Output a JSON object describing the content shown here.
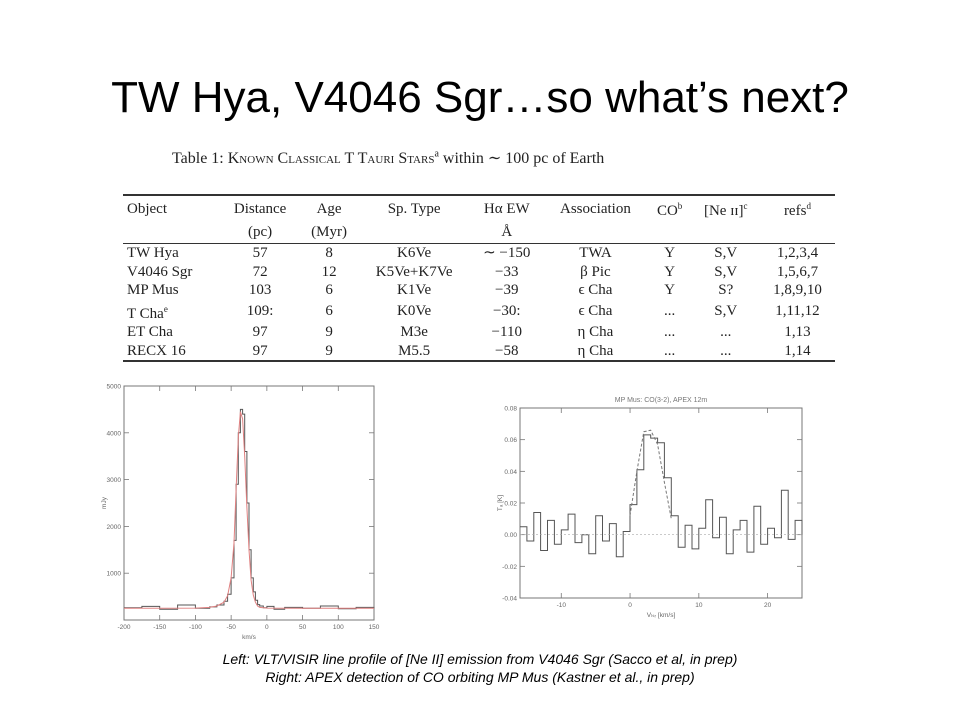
{
  "slide": {
    "title": "TW Hya, V4046 Sgr…so what’s next?"
  },
  "table": {
    "caption_prefix": "Table 1: ",
    "caption_smallcaps": "Known Classical T Tauri Stars",
    "caption_sup": "a",
    "caption_rest": " within ∼ 100 pc of Earth",
    "headers": {
      "object": "Object",
      "distance": "Distance",
      "distance_unit": "(pc)",
      "age": "Age",
      "age_unit": "(Myr)",
      "sptype": "Sp. Type",
      "ha": "Hα EW",
      "ha_unit": "Å",
      "association": "Association",
      "co": "CO",
      "co_sup": "b",
      "ne": "[Ne ɪɪ]",
      "ne_sup": "c",
      "refs": "refs",
      "refs_sup": "d"
    },
    "rows": [
      {
        "object": "TW Hya",
        "object_sup": "",
        "distance": "57",
        "age": "8",
        "sptype": "K6Ve",
        "ha": "∼ −150",
        "association": "TWA",
        "co": "Y",
        "ne": "S,V",
        "refs": "1,2,3,4"
      },
      {
        "object": "V4046 Sgr",
        "object_sup": "",
        "distance": "72",
        "age": "12",
        "sptype": "K5Ve+K7Ve",
        "ha": "−33",
        "association": "β Pic",
        "co": "Y",
        "ne": "S,V",
        "refs": "1,5,6,7"
      },
      {
        "object": "MP Mus",
        "object_sup": "",
        "distance": "103",
        "age": "6",
        "sptype": "K1Ve",
        "ha": "−39",
        "association": "ϵ Cha",
        "co": "Y",
        "ne": "S?",
        "refs": "1,8,9,10"
      },
      {
        "object": "T Cha",
        "object_sup": "e",
        "distance": "109:",
        "age": "6",
        "sptype": "K0Ve",
        "ha": "−30:",
        "association": "ϵ Cha",
        "co": "...",
        "ne": "S,V",
        "refs": "1,11,12"
      },
      {
        "object": "ET Cha",
        "object_sup": "",
        "distance": "97",
        "age": "9",
        "sptype": "M3e",
        "ha": "−110",
        "association": "η Cha",
        "co": "...",
        "ne": "...",
        "refs": "1,13"
      },
      {
        "object": "RECX 16",
        "object_sup": "",
        "distance": "97",
        "age": "9",
        "sptype": "M5.5",
        "ha": "−58",
        "association": "η Cha",
        "co": "...",
        "ne": "...",
        "refs": "1,14"
      }
    ]
  },
  "chart_data": [
    {
      "type": "line",
      "title": "",
      "xlabel": "km/s",
      "ylabel": "mJy",
      "xlim": [
        -200,
        150
      ],
      "ylim": [
        0,
        5000
      ],
      "xticks": [
        "-200",
        "-150",
        "-100",
        "-50",
        "0",
        "50",
        "100",
        "150"
      ],
      "yticks": [
        "1000",
        "2000",
        "3000",
        "4000",
        "5000"
      ],
      "series": [
        {
          "style": "histogram",
          "color": "#555555",
          "x": [
            -200,
            -175,
            -150,
            -125,
            -100,
            -80,
            -70,
            -60,
            -55,
            -50,
            -46,
            -43,
            -40,
            -37,
            -34,
            -31,
            -28,
            -25,
            -22,
            -19,
            -16,
            -13,
            -10,
            -5,
            0,
            10,
            25,
            50,
            75,
            100,
            125,
            150
          ],
          "y": [
            260,
            290,
            230,
            320,
            250,
            280,
            320,
            400,
            550,
            900,
            1700,
            2900,
            4000,
            4500,
            4400,
            3600,
            2500,
            1500,
            900,
            600,
            420,
            330,
            300,
            260,
            290,
            230,
            270,
            250,
            300,
            240,
            270,
            250
          ]
        },
        {
          "style": "line",
          "color": "#e08080",
          "x": [
            -200,
            -100,
            -80,
            -70,
            -60,
            -55,
            -50,
            -46,
            -43,
            -40,
            -37,
            -34,
            -31,
            -28,
            -25,
            -22,
            -19,
            -16,
            -13,
            -10,
            0,
            50,
            150
          ],
          "y": [
            250,
            255,
            270,
            300,
            380,
            520,
            900,
            1650,
            2800,
            3900,
            4450,
            4300,
            3500,
            2400,
            1500,
            850,
            530,
            380,
            300,
            270,
            255,
            250,
            250
          ]
        }
      ]
    },
    {
      "type": "line",
      "title": "MP Mus: CO(3-2), APEX 12m",
      "xlabel": "Vₗₛᵣ [km/s]",
      "ylabel": "Tₐ [K]",
      "xlim": [
        -16,
        25
      ],
      "ylim": [
        -0.04,
        0.08
      ],
      "xticks": [
        "-10",
        "0",
        "10",
        "20"
      ],
      "yticks": [
        "-0.04",
        "-0.02",
        "0.00",
        "0.02",
        "0.04",
        "0.06",
        "0.08"
      ],
      "series": [
        {
          "style": "histogram",
          "color": "#555555",
          "x": [
            -16,
            -15,
            -14,
            -13,
            -12,
            -11,
            -10,
            -9,
            -8,
            -7,
            -6,
            -5,
            -4,
            -3,
            -2,
            -1,
            0,
            1,
            2,
            3,
            4,
            5,
            6,
            7,
            8,
            9,
            10,
            11,
            12,
            13,
            14,
            15,
            16,
            17,
            18,
            19,
            20,
            21,
            22,
            23,
            24,
            25
          ],
          "y": [
            0.005,
            -0.004,
            0.014,
            -0.01,
            0.009,
            -0.006,
            0.003,
            0.013,
            -0.005,
            0.0,
            -0.012,
            0.012,
            -0.004,
            0.007,
            -0.014,
            0.002,
            0.019,
            0.041,
            0.063,
            0.061,
            0.058,
            0.036,
            0.012,
            -0.008,
            0.006,
            -0.009,
            0.004,
            0.022,
            -0.002,
            0.011,
            -0.012,
            0.003,
            0.009,
            -0.011,
            0.018,
            -0.006,
            0.004,
            -0.002,
            0.028,
            -0.003,
            0.009,
            0.0
          ]
        },
        {
          "style": "dashed",
          "color": "#777777",
          "x": [
            0,
            1,
            2,
            3,
            4,
            5,
            6
          ],
          "y": [
            0.012,
            0.04,
            0.065,
            0.066,
            0.057,
            0.033,
            0.01
          ]
        }
      ]
    }
  ],
  "captions": {
    "line1": "Left: VLT/VISIR line profile of [Ne II] emission from V4046 Sgr (Sacco et al, in prep)",
    "line2": "Right: APEX detection of CO orbiting MP Mus (Kastner et al., in prep)"
  }
}
